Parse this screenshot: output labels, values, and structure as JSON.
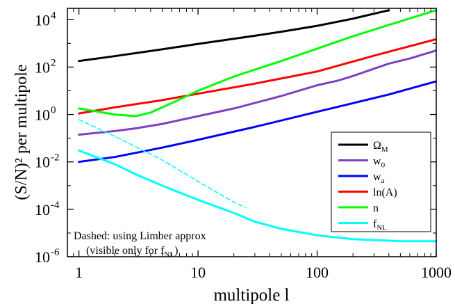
{
  "chart_data": {
    "type": "line",
    "xlabel": "multipole l",
    "ylabel": "(S/N)² per multipole",
    "x_scale": "log",
    "y_scale": "log",
    "xlim": [
      0.8,
      1000
    ],
    "ylim": [
      1e-06,
      30000
    ],
    "x_ticks": [
      {
        "value": 1,
        "label": "1"
      },
      {
        "value": 10,
        "label": "10"
      },
      {
        "value": 100,
        "label": "100"
      },
      {
        "value": 1000,
        "label": "1000"
      }
    ],
    "y_ticks": [
      {
        "value": 1e-06,
        "base": "10",
        "exp": "-6"
      },
      {
        "value": 0.0001,
        "base": "10",
        "exp": "-4"
      },
      {
        "value": 0.01,
        "base": "10",
        "exp": "-2"
      },
      {
        "value": 1,
        "base": "10",
        "exp": "0"
      },
      {
        "value": 100,
        "base": "10",
        "exp": "2"
      },
      {
        "value": 10000,
        "base": "10",
        "exp": "4"
      }
    ],
    "grid": false,
    "legend_position": "right",
    "annotation": {
      "line1": "Dashed: using Limber approx",
      "line2_prefix": "(visible only for f",
      "line2_sub": "NL",
      "line2_suffix": ")"
    },
    "series": [
      {
        "name": "Ω_M",
        "legend_main": "Ω",
        "legend_sub": "M",
        "color": "#000000",
        "style": "solid",
        "points": [
          [
            1,
            180
          ],
          [
            2,
            290
          ],
          [
            5,
            560
          ],
          [
            10,
            950
          ],
          [
            30,
            2100
          ],
          [
            50,
            3100
          ],
          [
            100,
            5500
          ],
          [
            200,
            11000
          ],
          [
            400,
            25000
          ]
        ]
      },
      {
        "name": "w_0",
        "legend_main": "w",
        "legend_sub": "0",
        "color": "#7f3fbf",
        "style": "solid",
        "points": [
          [
            1,
            0.14
          ],
          [
            2,
            0.2
          ],
          [
            3,
            0.26
          ],
          [
            5,
            0.4
          ],
          [
            10,
            0.85
          ],
          [
            20,
            1.8
          ],
          [
            50,
            6
          ],
          [
            100,
            17
          ],
          [
            150,
            27
          ],
          [
            200,
            42
          ],
          [
            300,
            85
          ],
          [
            400,
            140
          ],
          [
            600,
            230
          ],
          [
            1000,
            500
          ]
        ]
      },
      {
        "name": "w_a",
        "legend_main": "w",
        "legend_sub": "a",
        "color": "#0000ff",
        "style": "solid",
        "points": [
          [
            1,
            0.01
          ],
          [
            2,
            0.016
          ],
          [
            5,
            0.04
          ],
          [
            10,
            0.085
          ],
          [
            30,
            0.3
          ],
          [
            100,
            1.3
          ],
          [
            200,
            3
          ],
          [
            400,
            7
          ],
          [
            1000,
            25
          ]
        ]
      },
      {
        "name": "ln(A)",
        "legend_main": "ln(A)",
        "legend_sub": "",
        "color": "#ff0000",
        "style": "solid",
        "points": [
          [
            1,
            1.1
          ],
          [
            2,
            2
          ],
          [
            5,
            4
          ],
          [
            10,
            7.5
          ],
          [
            30,
            20
          ],
          [
            100,
            65
          ],
          [
            300,
            300
          ],
          [
            1000,
            1500
          ]
        ]
      },
      {
        "name": "n",
        "legend_main": "n",
        "legend_sub": "",
        "color": "#00ff00",
        "style": "solid",
        "points": [
          [
            1,
            1.8
          ],
          [
            2,
            1
          ],
          [
            3,
            0.85
          ],
          [
            4,
            1.2
          ],
          [
            6,
            3
          ],
          [
            10,
            10
          ],
          [
            20,
            40
          ],
          [
            50,
            180
          ],
          [
            100,
            600
          ],
          [
            200,
            2000
          ],
          [
            400,
            6000
          ],
          [
            1000,
            25000
          ]
        ]
      },
      {
        "name": "f_NL",
        "legend_main": "f",
        "legend_sub": "NL",
        "color": "#00ffff",
        "style": "solid",
        "points": [
          [
            1,
            0.03
          ],
          [
            2,
            0.008
          ],
          [
            3,
            0.003
          ],
          [
            5,
            0.001
          ],
          [
            10,
            0.00025
          ],
          [
            20,
            7e-05
          ],
          [
            30,
            3e-05
          ],
          [
            50,
            1.5e-05
          ],
          [
            100,
            8e-06
          ],
          [
            200,
            5.5e-06
          ],
          [
            500,
            4.5e-06
          ],
          [
            1000,
            4.5e-06
          ]
        ]
      },
      {
        "name": "f_NL (Limber)",
        "legend_main": "",
        "legend_sub": "",
        "color": "#00ffff",
        "style": "dashed",
        "points": [
          [
            1,
            0.6
          ],
          [
            2,
            0.12
          ],
          [
            5,
            0.012
          ],
          [
            10,
            0.0015
          ],
          [
            20,
            0.0002
          ],
          [
            25,
            0.00012
          ]
        ]
      }
    ]
  }
}
